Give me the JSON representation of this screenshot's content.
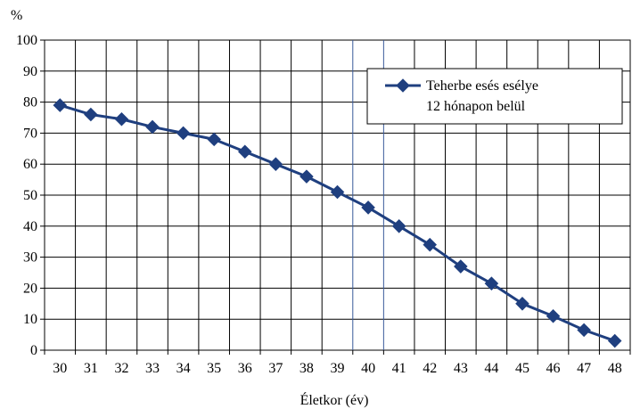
{
  "chart_data": {
    "type": "line",
    "x": [
      30,
      31,
      32,
      33,
      34,
      35,
      36,
      37,
      38,
      39,
      40,
      41,
      42,
      43,
      44,
      45,
      46,
      47,
      48
    ],
    "series": [
      {
        "name_lines": [
          "Teherbe esés esélye",
          "12 hónapon belül"
        ],
        "values": [
          79,
          76,
          74.5,
          72,
          70,
          68,
          64,
          60,
          56,
          51,
          46,
          40,
          34,
          27,
          21.5,
          15,
          11,
          6.5,
          3
        ]
      }
    ],
    "xlabel": "Életkor (év)",
    "ylabel": "%",
    "ylim": [
      0,
      100
    ],
    "yticks": [
      0,
      10,
      20,
      30,
      40,
      50,
      60,
      70,
      80,
      90,
      100
    ],
    "xticks": [
      "30",
      "31",
      "32",
      "33",
      "34",
      "35",
      "36",
      "37",
      "38",
      "39",
      "40",
      "41",
      "42",
      "43",
      "44",
      "45",
      "46",
      "47",
      "48"
    ],
    "grid": true,
    "legend_position": "top-right",
    "colors": {
      "series": "#1f3f7f",
      "grid": "#000000",
      "highlight_grid": "#3a5a9a"
    }
  }
}
